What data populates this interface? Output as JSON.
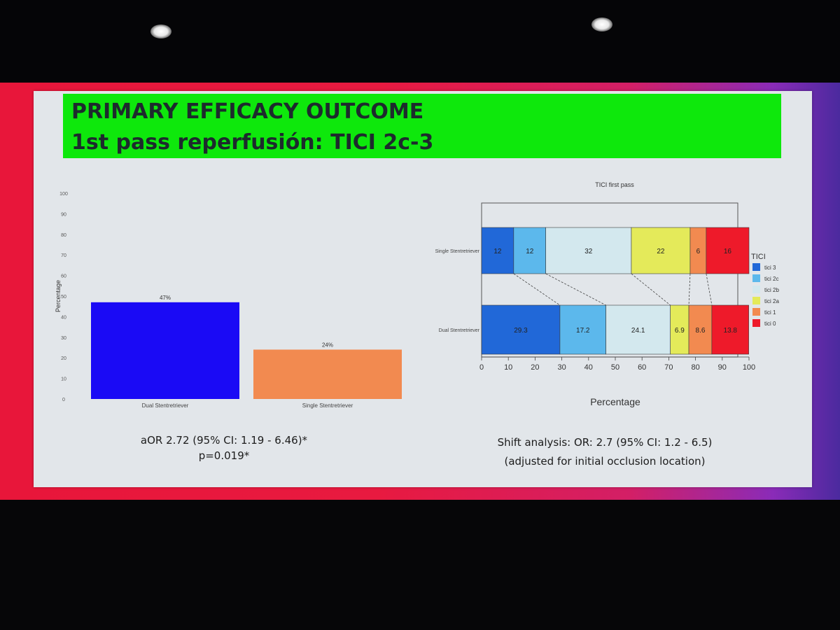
{
  "slide": {
    "title_line1": "PRIMARY EFFICACY OUTCOME",
    "title_line2": "1st pass reperfusión: TICI 2c-3"
  },
  "left_caption": {
    "line1": "aOR 2.72 (95% CI: 1.19 - 6.46)*",
    "line2": "p=0.019*"
  },
  "right_caption": {
    "line1": "Shift analysis:  OR: 2.7 (95% CI: 1.2 - 6.5)",
    "line2": "(adjusted for initial occlusion location)"
  },
  "chart_data": [
    {
      "type": "bar",
      "title": "",
      "xlabel": "",
      "ylabel": "Percentage",
      "ylim": [
        0,
        100
      ],
      "yticks": [
        "0",
        "10",
        "20",
        "30",
        "40",
        "50",
        "60",
        "70",
        "80",
        "90",
        "100"
      ],
      "categories": [
        "Dual Stentretriever",
        "Single Stentretriever"
      ],
      "values": [
        47,
        24
      ],
      "value_labels": [
        "47%",
        "24%"
      ],
      "colors": [
        "#1a0af5",
        "#f28a50"
      ],
      "grid": false
    },
    {
      "type": "bar",
      "orientation": "horizontal-stacked",
      "title": "TICI first pass",
      "xlabel": "Percentage",
      "ylabel": "",
      "xlim": [
        0,
        100
      ],
      "xticks": [
        "0",
        "10",
        "20",
        "30",
        "40",
        "50",
        "60",
        "70",
        "80",
        "90",
        "100"
      ],
      "categories": [
        "Single Stentretriever",
        "Dual Stentretriever"
      ],
      "legend_title": "TICI",
      "legend_position": "right",
      "series": [
        {
          "name": "tici 3",
          "color": "#2168d8",
          "values": [
            12,
            29.3
          ],
          "labels": [
            "12",
            "29.3"
          ]
        },
        {
          "name": "tici 2c",
          "color": "#5cb8ec",
          "values": [
            12,
            17.2
          ],
          "labels": [
            "12",
            "17.2"
          ]
        },
        {
          "name": "tici 2b",
          "color": "#d3e8ee",
          "values": [
            32,
            24.1
          ],
          "labels": [
            "32",
            "24.1"
          ]
        },
        {
          "name": "tici 2a",
          "color": "#e4ea5a",
          "values": [
            22,
            6.9
          ],
          "labels": [
            "22",
            "6.9"
          ]
        },
        {
          "name": "tici 1",
          "color": "#f28a50",
          "values": [
            6,
            8.6
          ],
          "labels": [
            "6",
            "8.6"
          ]
        },
        {
          "name": "tici 0",
          "color": "#ee1a2a",
          "values": [
            16,
            13.8
          ],
          "labels": [
            "16",
            "13.8"
          ]
        }
      ]
    }
  ]
}
